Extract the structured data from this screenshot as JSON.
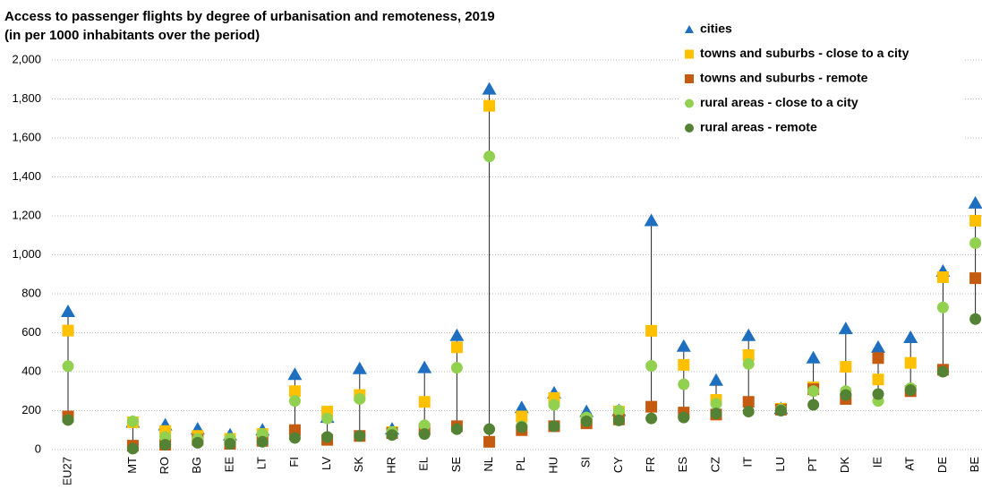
{
  "chart_data": {
    "type": "dot",
    "title": "Access to passenger flights by degree of urbanisation and remoteness, 2019",
    "subtitle": "(in per 1000 inhabitants over the period)",
    "categories": [
      "EU27",
      null,
      "MT",
      "RO",
      "BG",
      "EE",
      "LT",
      "FI",
      "LV",
      "SK",
      "HR",
      "EL",
      "SE",
      "NL",
      "PL",
      "HU",
      "SI",
      "CY",
      "FR",
      "ES",
      "CZ",
      "IT",
      "LU",
      "PT",
      "DK",
      "IE",
      "AT",
      "DE",
      "BE"
    ],
    "series": [
      {
        "name": "cities",
        "color": "#1f6fc0",
        "marker": "triangle",
        "values": [
          708,
          null,
          140,
          126,
          105,
          75,
          100,
          385,
          165,
          415,
          105,
          420,
          585,
          1850,
          215,
          290,
          195,
          200,
          1175,
          530,
          355,
          585,
          210,
          470,
          620,
          525,
          575,
          915,
          1265
        ]
      },
      {
        "name": "towns and suburbs - close to a city",
        "color": "#ffc000",
        "marker": "square",
        "values": [
          611,
          null,
          140,
          95,
          70,
          55,
          80,
          300,
          195,
          280,
          90,
          245,
          525,
          1765,
          170,
          265,
          150,
          195,
          610,
          435,
          255,
          485,
          210,
          320,
          425,
          360,
          445,
          885,
          1175
        ]
      },
      {
        "name": "towns and suburbs - remote",
        "color": "#c55a11",
        "marker": "square",
        "values": [
          170,
          null,
          20,
          25,
          50,
          30,
          45,
          100,
          50,
          70,
          85,
          105,
          120,
          40,
          100,
          120,
          135,
          155,
          220,
          190,
          180,
          245,
          205,
          310,
          260,
          470,
          300,
          410,
          880
        ]
      },
      {
        "name": "rural areas - close to a city",
        "color": "#92d050",
        "marker": "circle",
        "values": [
          428,
          null,
          145,
          65,
          55,
          55,
          80,
          250,
          160,
          260,
          90,
          125,
          420,
          1505,
          120,
          230,
          165,
          200,
          430,
          335,
          235,
          440,
          205,
          300,
          300,
          250,
          315,
          730,
          1060
        ]
      },
      {
        "name": "rural areas - remote",
        "color": "#548235",
        "marker": "circle",
        "values": [
          152,
          null,
          5,
          25,
          35,
          30,
          40,
          60,
          65,
          70,
          75,
          80,
          105,
          105,
          115,
          120,
          145,
          150,
          160,
          165,
          185,
          195,
          200,
          230,
          280,
          285,
          305,
          400,
          670
        ]
      }
    ],
    "ylim": [
      0,
      2000
    ],
    "yticks": [
      0,
      200,
      400,
      600,
      800,
      {
        "value": 1000,
        "label": "1,000"
      },
      {
        "value": 1200,
        "label": "1,200"
      },
      {
        "value": 1400,
        "label": "1,400"
      },
      {
        "value": 1600,
        "label": "1,600"
      },
      {
        "value": 1800,
        "label": "1,800"
      },
      {
        "value": 2000,
        "label": "2,000"
      }
    ],
    "grid": true,
    "legend": "top-right"
  }
}
